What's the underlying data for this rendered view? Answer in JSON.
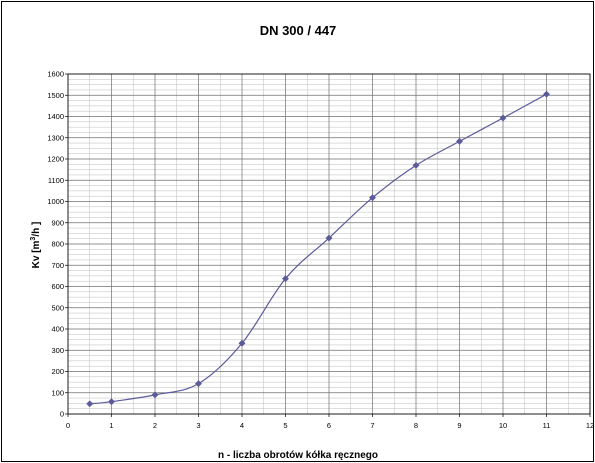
{
  "chart_data": {
    "type": "line",
    "title": "DN 300 / 447",
    "xlabel": "n - liczba obrotów kółka ręcznego",
    "ylabel": {
      "prefix": "Kv [m",
      "sup": "3",
      "suffix": "/h ]"
    },
    "xlim": [
      0,
      12
    ],
    "ylim": [
      0,
      1600
    ],
    "x_ticks": [
      "0",
      "1",
      "2",
      "3",
      "4",
      "5",
      "6",
      "7",
      "8",
      "9",
      "10",
      "11",
      "12"
    ],
    "y_ticks": [
      "0",
      "100",
      "200",
      "300",
      "400",
      "500",
      "600",
      "700",
      "800",
      "900",
      "1000",
      "1100",
      "1200",
      "1300",
      "1400",
      "1500",
      "1600"
    ],
    "grid": true,
    "legend": "none",
    "series": [
      {
        "color": "#5b5b9b",
        "marker": "diamond",
        "points": [
          {
            "x": 0.5,
            "y": 48
          },
          {
            "x": 1,
            "y": 58
          },
          {
            "x": 2,
            "y": 90
          },
          {
            "x": 3,
            "y": 143
          },
          {
            "x": 4,
            "y": 333
          },
          {
            "x": 5,
            "y": 637
          },
          {
            "x": 6,
            "y": 828
          },
          {
            "x": 7,
            "y": 1018
          },
          {
            "x": 8,
            "y": 1170
          },
          {
            "x": 9,
            "y": 1283
          },
          {
            "x": 10,
            "y": 1393
          },
          {
            "x": 11,
            "y": 1505
          }
        ]
      }
    ]
  }
}
